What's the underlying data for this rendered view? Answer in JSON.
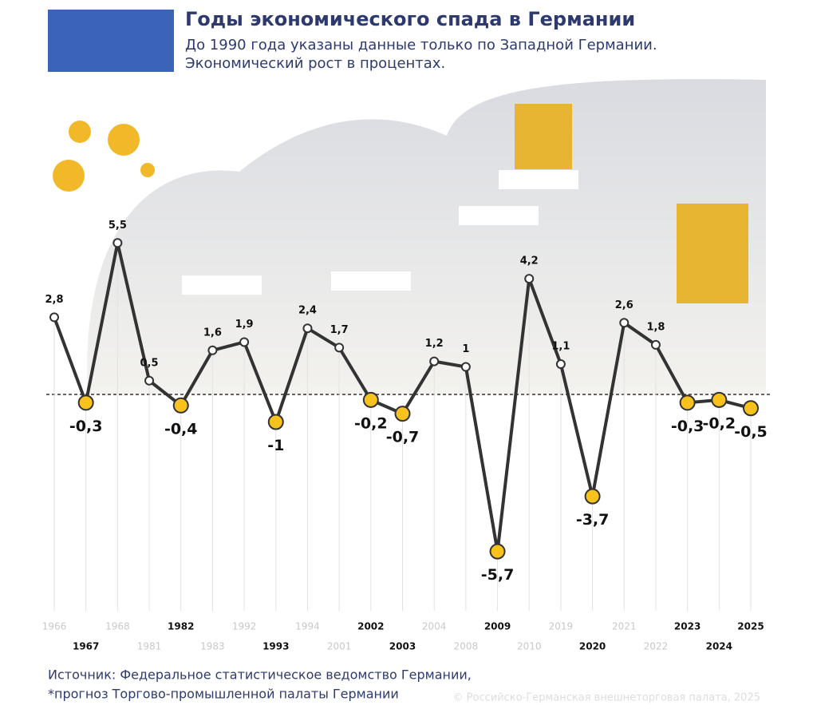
{
  "header": {
    "title": "Годы экономического спада в Германии",
    "subtitle_lines": [
      "До 1990 года указаны данные только по Западной Германии.",
      "Экономический рост в процентах."
    ]
  },
  "chart_data": {
    "type": "line",
    "categories": [
      "1966",
      "1967",
      "1968",
      "1981",
      "1982",
      "1983",
      "1992",
      "1993",
      "1994",
      "2001",
      "2002",
      "2003",
      "2004",
      "2008",
      "2009",
      "2010",
      "2019",
      "2020",
      "2021",
      "2022",
      "2023",
      "2024",
      "2025"
    ],
    "values": [
      2.8,
      -0.3,
      5.5,
      0.5,
      -0.4,
      1.6,
      1.9,
      -1,
      2.4,
      1.7,
      -0.2,
      -0.7,
      1.2,
      1,
      -5.7,
      4.2,
      1.1,
      -3.7,
      2.6,
      1.8,
      -0.3,
      -0.2,
      -0.5
    ],
    "value_labels": [
      "2,8",
      "-0,3",
      "5,5",
      "0,5",
      "-0,4",
      "1,6",
      "1,9",
      "-1",
      "2,4",
      "1,7",
      "-0,2",
      "-0,7",
      "1,2",
      "1",
      "-5,7",
      "4,2",
      "1,1",
      "-3,7",
      "2,6",
      "1,8",
      "-0,3",
      "-0,2",
      "-0,5"
    ],
    "ylim": [
      -6,
      6
    ],
    "color": "#333333",
    "negative_color": "#f7c21b"
  },
  "footer": {
    "source_lines": [
      "Источник: Федеральное статистическое ведомство Германии,",
      "*прогноз Торгово-промышленной палаты Германии"
    ],
    "copyright": "© Российско-Германская внешнеторговая палата, 2025"
  }
}
